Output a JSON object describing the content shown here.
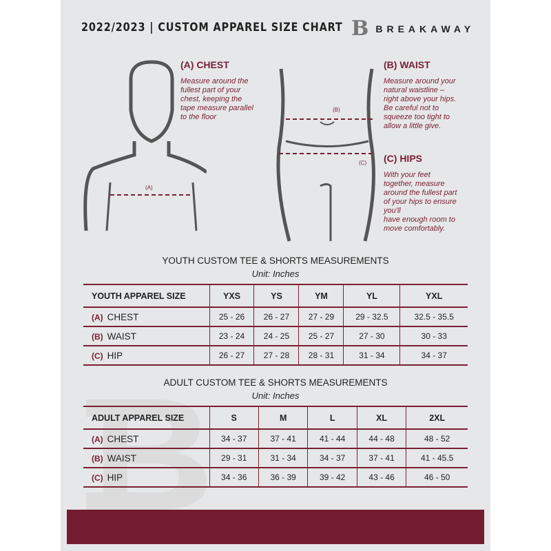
{
  "header": {
    "title": "2022/2023  |  CUSTOM APPAREL SIZE CHART",
    "brand": "BREAKAWAY",
    "logo_letter": "B"
  },
  "colors": {
    "accent": "#7a1f33",
    "panel": "#e6e7e8"
  },
  "guides": {
    "chest": {
      "title": "(A) CHEST",
      "text": "Measure around the\nfullest part of your\nchest, keeping the\ntape measure parallel\nto the floor",
      "marker": "(A)"
    },
    "waist": {
      "title": "(B) WAIST",
      "text": "Measure around your\nnatural waistline –\nright above your hips.\nBe careful not to\nsqueeze too tight to\nallow a little give.",
      "marker": "(B)"
    },
    "hips": {
      "title": "(C) HIPS",
      "text": "With your feet\ntogether, measure\naround the fullest part\nof your hips to ensure\nyou'll\nhave enough room to\nmove comfortably.",
      "marker": "(C)"
    }
  },
  "youth": {
    "title": "YOUTH CUSTOM TEE & SHORTS MEASUREMENTS",
    "unit": "Unit: Inches",
    "header": [
      "YOUTH APPAREL SIZE",
      "YXS",
      "YS",
      "YM",
      "YL",
      "YXL"
    ],
    "rows": [
      {
        "letter": "(A)",
        "name": "CHEST",
        "values": [
          "25 - 26",
          "26 - 27",
          "27 - 29",
          "29 - 32.5",
          "32.5 - 35.5"
        ]
      },
      {
        "letter": "(B)",
        "name": "WAIST",
        "values": [
          "23 - 24",
          "24 - 25",
          "25 - 27",
          "27 - 30",
          "30 - 33"
        ]
      },
      {
        "letter": "(C)",
        "name": "HIP",
        "values": [
          "26 - 27",
          "27 - 28",
          "28 - 31",
          "31 - 34",
          "34 - 37"
        ]
      }
    ]
  },
  "adult": {
    "title": "ADULT CUSTOM TEE & SHORTS MEASUREMENTS",
    "unit": "Unit: Inches",
    "header": [
      "ADULT APPAREL SIZE",
      "S",
      "M",
      "L",
      "XL",
      "2XL"
    ],
    "rows": [
      {
        "letter": "(A)",
        "name": "CHEST",
        "values": [
          "34 - 37",
          "37 - 41",
          "41 - 44",
          "44 - 48",
          "48 - 52"
        ]
      },
      {
        "letter": "(B)",
        "name": "WAIST",
        "values": [
          "29 - 31",
          "31 - 34",
          "34 - 37",
          "37 - 41",
          "41 - 45.5"
        ]
      },
      {
        "letter": "(C)",
        "name": "HIP",
        "values": [
          "34 - 36",
          "36 - 39",
          "39 - 42",
          "43 - 46",
          "46 - 50"
        ]
      }
    ]
  }
}
